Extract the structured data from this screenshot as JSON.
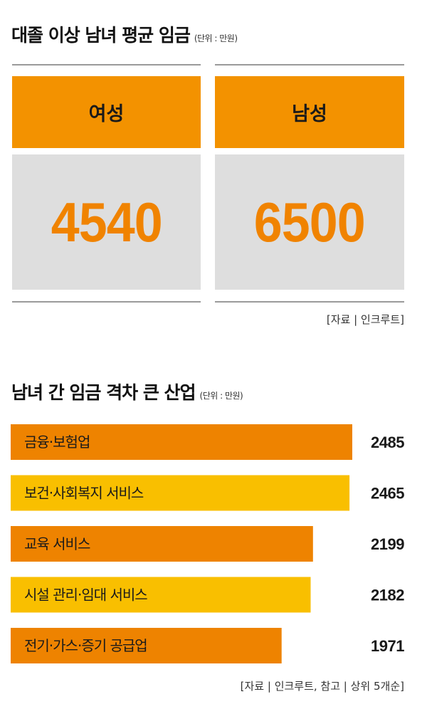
{
  "section1": {
    "title": "대졸 이상 남녀 평균 임금",
    "unit": "(단위 : 만원)",
    "cards": [
      {
        "label": "여성",
        "value": "4540"
      },
      {
        "label": "남성",
        "value": "6500"
      }
    ],
    "source": "[자료 | 인크루트]"
  },
  "section2": {
    "title": "남녀 간 임금 격차 큰 산업",
    "unit": "(단위 : 만원)",
    "source": "[자료 | 인크루트, 참고 | 상위 5개순]"
  },
  "colors": {
    "orange": "#f39200",
    "dark_orange": "#ee8300",
    "yellow": "#f9bf00",
    "panel_gray": "#dedede",
    "value_orange": "#f08300"
  },
  "chart_data": [
    {
      "type": "bar",
      "orientation": "horizontal",
      "title": "대졸 이상 남녀 평균 임금",
      "unit": "(단위 : 만원)",
      "categories": [
        "여성",
        "남성"
      ],
      "values": [
        4540,
        6500
      ]
    },
    {
      "type": "bar",
      "orientation": "horizontal",
      "title": "남녀 간 임금 격차 큰 산업",
      "unit": "(단위 : 만원)",
      "categories": [
        "금융·보험업",
        "보건·사회복지 서비스",
        "교육 서비스",
        "시설 관리·임대 서비스",
        "전기·가스·증기 공급업"
      ],
      "values": [
        2485,
        2465,
        2199,
        2182,
        1971
      ],
      "bar_colors": [
        "#ee8300",
        "#f9bf00",
        "#ee8300",
        "#f9bf00",
        "#ee8300"
      ]
    }
  ]
}
